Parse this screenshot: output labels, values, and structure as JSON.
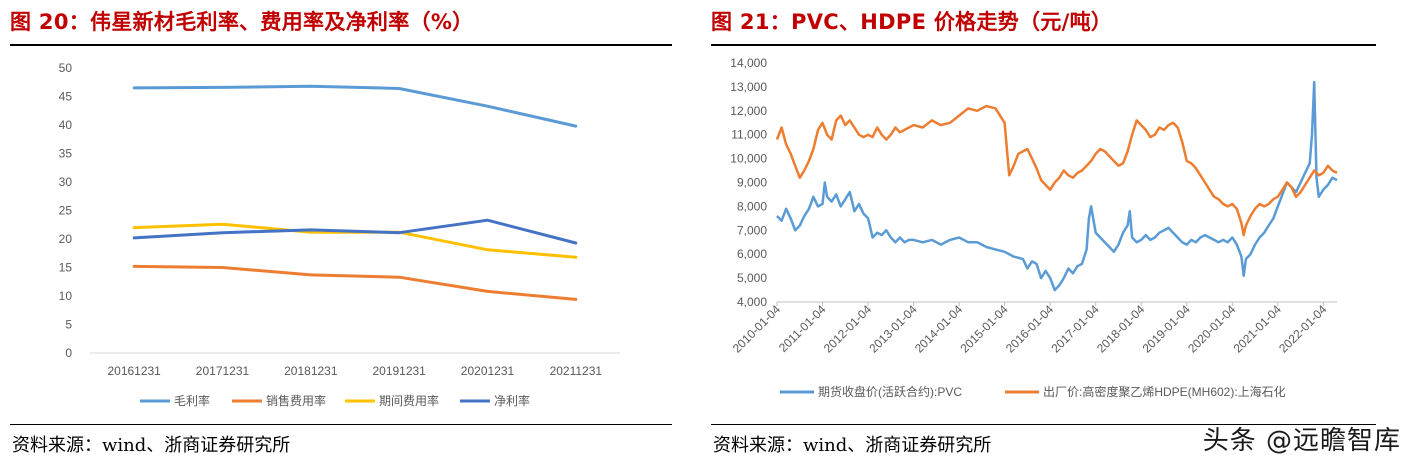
{
  "left_panel": {
    "title": "图 20：伟星新材毛利率、费用率及净利率（%）",
    "source": "资料来源：wind、浙商证券研究所"
  },
  "right_panel": {
    "title": "图 21：PVC、HDPE 价格走势（元/吨）",
    "source": "资料来源：wind、浙商证券研究所"
  },
  "watermark": "头条 @远瞻智库",
  "colors": {
    "title_red": "#c00000",
    "light_blue": "#5b9bd5",
    "orange": "#ed7d31",
    "yellow": "#ffc000",
    "dark_blue": "#4472c4",
    "axis_text": "#595959",
    "grid": "#d9d9d9"
  },
  "chart_data": [
    {
      "type": "line",
      "categories": [
        "20161231",
        "20171231",
        "20181231",
        "20191231",
        "20201231",
        "20211231"
      ],
      "ylim": [
        0,
        50
      ],
      "yticks": [
        0,
        5,
        10,
        15,
        20,
        25,
        30,
        35,
        40,
        45,
        50
      ],
      "grid": false,
      "legend_position": "bottom",
      "series": [
        {
          "name": "毛利率",
          "color": "#5b9bd5",
          "values": [
            46.5,
            46.6,
            46.8,
            46.4,
            43.3,
            39.8
          ]
        },
        {
          "name": "销售费用率",
          "color": "#ed7d31",
          "values": [
            15.2,
            15.0,
            13.7,
            13.3,
            10.8,
            9.4
          ]
        },
        {
          "name": "期间费用率",
          "color": "#ffc000",
          "values": [
            22.0,
            22.6,
            21.2,
            21.2,
            18.1,
            16.8
          ]
        },
        {
          "name": "净利率",
          "color": "#4472c4",
          "values": [
            20.2,
            21.1,
            21.6,
            21.1,
            23.3,
            19.3
          ]
        }
      ]
    },
    {
      "type": "line",
      "x_tick_labels": [
        "2010-01-04",
        "2011-01-04",
        "2012-01-04",
        "2013-01-04",
        "2014-01-04",
        "2015-01-04",
        "2016-01-04",
        "2017-01-04",
        "2018-01-04",
        "2019-01-04",
        "2020-01-04",
        "2021-01-04",
        "2022-01-04"
      ],
      "x_range": [
        2010.0,
        2022.3
      ],
      "ylim": [
        4000,
        14000
      ],
      "yticks": [
        "4,000",
        "5,000",
        "6,000",
        "7,000",
        "8,000",
        "9,000",
        "10,000",
        "11,000",
        "12,000",
        "13,000",
        "14,000"
      ],
      "grid": false,
      "legend_position": "bottom",
      "series": [
        {
          "name": "期货收盘价(活跃合约):PVC",
          "color": "#5b9bd5",
          "points": [
            [
              2010.0,
              7600
            ],
            [
              2010.1,
              7400
            ],
            [
              2010.2,
              7900
            ],
            [
              2010.3,
              7500
            ],
            [
              2010.4,
              7000
            ],
            [
              2010.5,
              7200
            ],
            [
              2010.6,
              7600
            ],
            [
              2010.7,
              7900
            ],
            [
              2010.8,
              8400
            ],
            [
              2010.9,
              8000
            ],
            [
              2011.0,
              8100
            ],
            [
              2011.05,
              9000
            ],
            [
              2011.1,
              8400
            ],
            [
              2011.2,
              8200
            ],
            [
              2011.3,
              8500
            ],
            [
              2011.4,
              8000
            ],
            [
              2011.5,
              8300
            ],
            [
              2011.6,
              8600
            ],
            [
              2011.7,
              7800
            ],
            [
              2011.8,
              8100
            ],
            [
              2011.9,
              7700
            ],
            [
              2012.0,
              7500
            ],
            [
              2012.1,
              6700
            ],
            [
              2012.2,
              6900
            ],
            [
              2012.3,
              6800
            ],
            [
              2012.4,
              7000
            ],
            [
              2012.5,
              6700
            ],
            [
              2012.6,
              6500
            ],
            [
              2012.7,
              6700
            ],
            [
              2012.8,
              6500
            ],
            [
              2012.9,
              6600
            ],
            [
              2013.0,
              6600
            ],
            [
              2013.2,
              6500
            ],
            [
              2013.4,
              6600
            ],
            [
              2013.6,
              6400
            ],
            [
              2013.8,
              6600
            ],
            [
              2014.0,
              6700
            ],
            [
              2014.2,
              6500
            ],
            [
              2014.4,
              6500
            ],
            [
              2014.6,
              6300
            ],
            [
              2014.8,
              6200
            ],
            [
              2015.0,
              6100
            ],
            [
              2015.2,
              5900
            ],
            [
              2015.4,
              5800
            ],
            [
              2015.5,
              5400
            ],
            [
              2015.6,
              5700
            ],
            [
              2015.7,
              5600
            ],
            [
              2015.8,
              5000
            ],
            [
              2015.9,
              5300
            ],
            [
              2016.0,
              5000
            ],
            [
              2016.1,
              4500
            ],
            [
              2016.2,
              4700
            ],
            [
              2016.3,
              5000
            ],
            [
              2016.4,
              5400
            ],
            [
              2016.5,
              5200
            ],
            [
              2016.6,
              5500
            ],
            [
              2016.7,
              5600
            ],
            [
              2016.8,
              6200
            ],
            [
              2016.85,
              7500
            ],
            [
              2016.9,
              8000
            ],
            [
              2017.0,
              6900
            ],
            [
              2017.1,
              6700
            ],
            [
              2017.2,
              6500
            ],
            [
              2017.3,
              6300
            ],
            [
              2017.4,
              6100
            ],
            [
              2017.5,
              6400
            ],
            [
              2017.6,
              6900
            ],
            [
              2017.7,
              7200
            ],
            [
              2017.75,
              7800
            ],
            [
              2017.8,
              6700
            ],
            [
              2017.9,
              6500
            ],
            [
              2018.0,
              6600
            ],
            [
              2018.1,
              6800
            ],
            [
              2018.2,
              6600
            ],
            [
              2018.3,
              6700
            ],
            [
              2018.4,
              6900
            ],
            [
              2018.5,
              7000
            ],
            [
              2018.6,
              7100
            ],
            [
              2018.7,
              6900
            ],
            [
              2018.8,
              6700
            ],
            [
              2018.9,
              6500
            ],
            [
              2019.0,
              6400
            ],
            [
              2019.1,
              6600
            ],
            [
              2019.2,
              6500
            ],
            [
              2019.3,
              6700
            ],
            [
              2019.4,
              6800
            ],
            [
              2019.5,
              6700
            ],
            [
              2019.6,
              6600
            ],
            [
              2019.7,
              6500
            ],
            [
              2019.8,
              6600
            ],
            [
              2019.9,
              6500
            ],
            [
              2020.0,
              6700
            ],
            [
              2020.1,
              6400
            ],
            [
              2020.2,
              5900
            ],
            [
              2020.25,
              5100
            ],
            [
              2020.3,
              5800
            ],
            [
              2020.4,
              6000
            ],
            [
              2020.5,
              6400
            ],
            [
              2020.6,
              6700
            ],
            [
              2020.7,
              6900
            ],
            [
              2020.8,
              7200
            ],
            [
              2020.9,
              7500
            ],
            [
              2021.0,
              8000
            ],
            [
              2021.1,
              8500
            ],
            [
              2021.2,
              9000
            ],
            [
              2021.3,
              8800
            ],
            [
              2021.4,
              8600
            ],
            [
              2021.5,
              9000
            ],
            [
              2021.6,
              9400
            ],
            [
              2021.7,
              9800
            ],
            [
              2021.75,
              11000
            ],
            [
              2021.8,
              13200
            ],
            [
              2021.85,
              9200
            ],
            [
              2021.9,
              8400
            ],
            [
              2022.0,
              8700
            ],
            [
              2022.1,
              8900
            ],
            [
              2022.2,
              9200
            ],
            [
              2022.3,
              9100
            ]
          ]
        },
        {
          "name": "出厂价:高密度聚乙烯HDPE(MH602):上海石化",
          "color": "#ed7d31",
          "points": [
            [
              2010.0,
              10800
            ],
            [
              2010.1,
              11300
            ],
            [
              2010.2,
              10600
            ],
            [
              2010.3,
              10200
            ],
            [
              2010.4,
              9700
            ],
            [
              2010.5,
              9200
            ],
            [
              2010.6,
              9500
            ],
            [
              2010.7,
              9900
            ],
            [
              2010.8,
              10400
            ],
            [
              2010.9,
              11200
            ],
            [
              2011.0,
              11500
            ],
            [
              2011.1,
              11000
            ],
            [
              2011.2,
              10800
            ],
            [
              2011.3,
              11600
            ],
            [
              2011.4,
              11800
            ],
            [
              2011.5,
              11400
            ],
            [
              2011.6,
              11600
            ],
            [
              2011.7,
              11300
            ],
            [
              2011.8,
              11000
            ],
            [
              2011.9,
              10900
            ],
            [
              2012.0,
              11000
            ],
            [
              2012.1,
              10900
            ],
            [
              2012.2,
              11300
            ],
            [
              2012.3,
              11000
            ],
            [
              2012.4,
              10800
            ],
            [
              2012.5,
              11000
            ],
            [
              2012.6,
              11300
            ],
            [
              2012.7,
              11100
            ],
            [
              2012.8,
              11200
            ],
            [
              2012.9,
              11300
            ],
            [
              2013.0,
              11400
            ],
            [
              2013.2,
              11300
            ],
            [
              2013.4,
              11600
            ],
            [
              2013.6,
              11400
            ],
            [
              2013.8,
              11500
            ],
            [
              2014.0,
              11800
            ],
            [
              2014.2,
              12100
            ],
            [
              2014.4,
              12000
            ],
            [
              2014.6,
              12200
            ],
            [
              2014.8,
              12100
            ],
            [
              2015.0,
              11500
            ],
            [
              2015.1,
              9300
            ],
            [
              2015.2,
              9700
            ],
            [
              2015.3,
              10200
            ],
            [
              2015.4,
              10300
            ],
            [
              2015.5,
              10400
            ],
            [
              2015.6,
              10000
            ],
            [
              2015.7,
              9600
            ],
            [
              2015.8,
              9100
            ],
            [
              2015.9,
              8900
            ],
            [
              2016.0,
              8700
            ],
            [
              2016.1,
              9000
            ],
            [
              2016.2,
              9200
            ],
            [
              2016.3,
              9500
            ],
            [
              2016.4,
              9300
            ],
            [
              2016.5,
              9200
            ],
            [
              2016.6,
              9400
            ],
            [
              2016.7,
              9500
            ],
            [
              2016.8,
              9700
            ],
            [
              2016.9,
              9900
            ],
            [
              2017.0,
              10200
            ],
            [
              2017.1,
              10400
            ],
            [
              2017.2,
              10300
            ],
            [
              2017.3,
              10100
            ],
            [
              2017.4,
              9900
            ],
            [
              2017.5,
              9700
            ],
            [
              2017.6,
              9800
            ],
            [
              2017.7,
              10300
            ],
            [
              2017.8,
              11000
            ],
            [
              2017.9,
              11600
            ],
            [
              2018.0,
              11400
            ],
            [
              2018.1,
              11200
            ],
            [
              2018.2,
              10900
            ],
            [
              2018.3,
              11000
            ],
            [
              2018.4,
              11300
            ],
            [
              2018.5,
              11200
            ],
            [
              2018.6,
              11400
            ],
            [
              2018.7,
              11500
            ],
            [
              2018.8,
              11300
            ],
            [
              2018.9,
              10700
            ],
            [
              2019.0,
              9900
            ],
            [
              2019.1,
              9800
            ],
            [
              2019.2,
              9600
            ],
            [
              2019.3,
              9300
            ],
            [
              2019.4,
              9000
            ],
            [
              2019.5,
              8700
            ],
            [
              2019.6,
              8400
            ],
            [
              2019.7,
              8300
            ],
            [
              2019.8,
              8100
            ],
            [
              2019.9,
              8000
            ],
            [
              2020.0,
              8100
            ],
            [
              2020.1,
              7900
            ],
            [
              2020.2,
              7300
            ],
            [
              2020.25,
              6800
            ],
            [
              2020.3,
              7200
            ],
            [
              2020.4,
              7600
            ],
            [
              2020.5,
              7900
            ],
            [
              2020.6,
              8100
            ],
            [
              2020.7,
              8000
            ],
            [
              2020.8,
              8100
            ],
            [
              2020.9,
              8300
            ],
            [
              2021.0,
              8400
            ],
            [
              2021.1,
              8700
            ],
            [
              2021.2,
              9000
            ],
            [
              2021.3,
              8800
            ],
            [
              2021.4,
              8400
            ],
            [
              2021.5,
              8600
            ],
            [
              2021.6,
              8900
            ],
            [
              2021.7,
              9200
            ],
            [
              2021.8,
              9500
            ],
            [
              2021.9,
              9300
            ],
            [
              2022.0,
              9400
            ],
            [
              2022.1,
              9700
            ],
            [
              2022.2,
              9500
            ],
            [
              2022.3,
              9400
            ]
          ]
        }
      ]
    }
  ]
}
